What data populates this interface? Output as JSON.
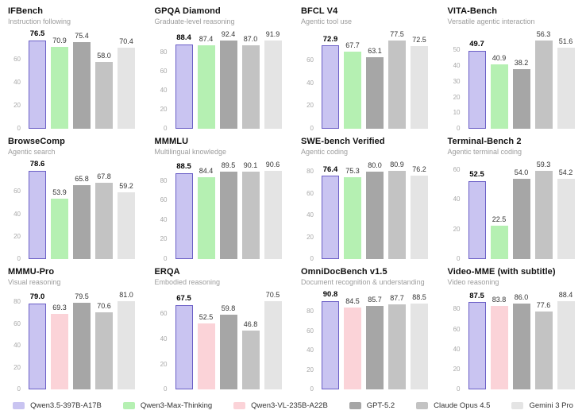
{
  "page": {
    "background": "#ffffff"
  },
  "models": {
    "qwen35": {
      "label": "Qwen3.5-397B-A17B",
      "color": "#c9c4f1",
      "border": "#6b5fc6"
    },
    "qwen3max": {
      "label": "Qwen3-Max-Thinking",
      "color": "#b5f0b2"
    },
    "qwen3vl": {
      "label": "Qwen3-VL-235B-A22B",
      "color": "#fbd3d8"
    },
    "gpt52": {
      "label": "GPT-5.2",
      "color": "#a6a6a6"
    },
    "claude": {
      "label": "Claude Opus 4.5",
      "color": "#c3c3c3"
    },
    "gemini": {
      "label": "Gemini 3 Pro",
      "color": "#e4e4e4"
    }
  },
  "legend_order": [
    "qwen35",
    "qwen3max",
    "qwen3vl",
    "gpt52",
    "claude",
    "gemini"
  ],
  "chart_data": [
    {
      "type": "bar",
      "title": "IFBench",
      "subtitle": "Instruction following",
      "ticks": [
        0,
        20,
        40,
        60
      ],
      "ymax": 79.2,
      "highlight_index": 0,
      "models": [
        "qwen35",
        "qwen3max",
        "gpt52",
        "claude",
        "gemini"
      ],
      "values": [
        76.5,
        70.9,
        75.4,
        58.0,
        70.4
      ]
    },
    {
      "type": "bar",
      "title": "GPQA Diamond",
      "subtitle": "Graduate-level reasoning",
      "ticks": [
        0,
        20,
        40,
        60,
        80
      ],
      "ymax": 95.6,
      "highlight_index": 0,
      "models": [
        "qwen35",
        "qwen3max",
        "gpt52",
        "claude",
        "gemini"
      ],
      "values": [
        88.4,
        87.4,
        92.4,
        87.0,
        91.9
      ]
    },
    {
      "type": "bar",
      "title": "BFCL V4",
      "subtitle": "Agentic tool use",
      "ticks": [
        0,
        20,
        40,
        60
      ],
      "ymax": 80.2,
      "highlight_index": 0,
      "models": [
        "qwen35",
        "qwen3max",
        "gpt52",
        "claude",
        "gemini"
      ],
      "values": [
        72.9,
        67.7,
        63.1,
        77.5,
        72.5
      ]
    },
    {
      "type": "bar",
      "title": "VITA-Bench",
      "subtitle": "Versatile agentic interaction",
      "ticks": [
        0,
        10,
        20,
        30,
        40,
        50
      ],
      "ymax": 58.3,
      "highlight_index": 0,
      "models": [
        "qwen35",
        "qwen3max",
        "gpt52",
        "claude",
        "gemini"
      ],
      "values": [
        49.7,
        40.9,
        38.2,
        56.3,
        51.6
      ]
    },
    {
      "type": "bar",
      "title": "BrowseComp",
      "subtitle": "Agentic search",
      "ticks": [
        0,
        20,
        40,
        60
      ],
      "ymax": 81.4,
      "highlight_index": 0,
      "models": [
        "qwen35",
        "qwen3max",
        "gpt52",
        "claude",
        "gemini"
      ],
      "values": [
        78.6,
        53.9,
        65.8,
        67.8,
        59.2
      ]
    },
    {
      "type": "bar",
      "title": "MMMLU",
      "subtitle": "Multilingual knowledge",
      "ticks": [
        0,
        20,
        40,
        60,
        80
      ],
      "ymax": 93.8,
      "highlight_index": 0,
      "models": [
        "qwen35",
        "qwen3max",
        "gpt52",
        "claude",
        "gemini"
      ],
      "values": [
        88.5,
        84.4,
        89.5,
        90.1,
        90.6
      ]
    },
    {
      "type": "bar",
      "title": "SWE-bench Verified",
      "subtitle": "Agentic coding",
      "ticks": [
        0,
        20,
        40,
        60,
        80
      ],
      "ymax": 83.7,
      "highlight_index": 0,
      "models": [
        "qwen35",
        "qwen3max",
        "gpt52",
        "claude",
        "gemini"
      ],
      "values": [
        76.4,
        75.3,
        80.0,
        80.9,
        76.2
      ]
    },
    {
      "type": "bar",
      "title": "Terminal-Bench 2",
      "subtitle": "Agentic terminal coding",
      "ticks": [
        0,
        20,
        40,
        60
      ],
      "ymax": 61.4,
      "highlight_index": 0,
      "models": [
        "qwen35",
        "qwen3max",
        "gpt52",
        "claude",
        "gemini"
      ],
      "values": [
        52.5,
        22.5,
        54.0,
        59.3,
        54.2
      ]
    },
    {
      "type": "bar",
      "title": "MMMU-Pro",
      "subtitle": "Visual reasoning",
      "ticks": [
        0,
        20,
        40,
        60,
        80
      ],
      "ymax": 83.8,
      "highlight_index": 0,
      "models": [
        "qwen35",
        "qwen3vl",
        "gpt52",
        "claude",
        "gemini"
      ],
      "values": [
        79.0,
        69.3,
        79.5,
        70.6,
        81.0
      ]
    },
    {
      "type": "bar",
      "title": "ERQA",
      "subtitle": "Embodied reasoning",
      "ticks": [
        0,
        20,
        40,
        60
      ],
      "ymax": 73.0,
      "highlight_index": 0,
      "models": [
        "qwen35",
        "qwen3vl",
        "gpt52",
        "claude",
        "gemini"
      ],
      "values": [
        67.5,
        52.5,
        59.8,
        46.8,
        70.5
      ]
    },
    {
      "type": "bar",
      "title": "OmniDocBench v1.5",
      "subtitle": "Document recognition & understanding",
      "ticks": [
        0,
        20,
        40,
        60,
        80
      ],
      "ymax": 94.0,
      "highlight_index": 0,
      "models": [
        "qwen35",
        "qwen3vl",
        "gpt52",
        "claude",
        "gemini"
      ],
      "values": [
        90.8,
        84.5,
        85.7,
        87.7,
        88.5
      ]
    },
    {
      "type": "bar",
      "title": "Video-MME (with subtitle)",
      "subtitle": "Video reasoning",
      "ticks": [
        0,
        20,
        40,
        60,
        80
      ],
      "ymax": 91.5,
      "highlight_index": 0,
      "models": [
        "qwen35",
        "qwen3vl",
        "gpt52",
        "claude",
        "gemini"
      ],
      "values": [
        87.5,
        83.8,
        86.0,
        77.6,
        88.4
      ]
    }
  ]
}
